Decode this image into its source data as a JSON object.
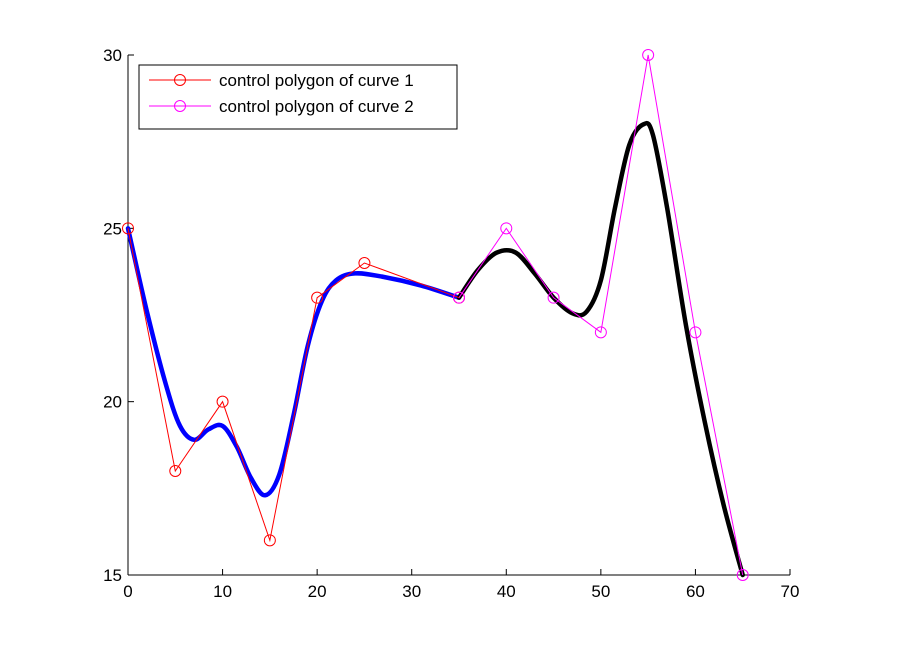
{
  "chart_data": {
    "type": "line",
    "title": "",
    "xlabel": "",
    "ylabel": "",
    "xlim": [
      0,
      70
    ],
    "ylim": [
      15,
      30
    ],
    "xticks": [
      0,
      10,
      20,
      30,
      40,
      50,
      60,
      70
    ],
    "yticks": [
      15,
      20,
      25,
      30
    ],
    "grid": false,
    "legend_position": "top-left",
    "series": [
      {
        "name": "control polygon of curve 1",
        "kind": "control-polygon",
        "color": "#ff0000",
        "marker": "circle",
        "in_legend": true,
        "x": [
          0,
          5,
          10,
          15,
          20,
          25,
          35
        ],
        "y": [
          25,
          18,
          20,
          16,
          23,
          24,
          23
        ]
      },
      {
        "name": "control polygon of curve 2",
        "kind": "control-polygon",
        "color": "#ff00ff",
        "marker": "circle",
        "in_legend": true,
        "x": [
          35,
          40,
          45,
          50,
          55,
          60,
          65
        ],
        "y": [
          23,
          25,
          23,
          22,
          30,
          22,
          15
        ]
      },
      {
        "kind": "curve",
        "color": "#0000ff",
        "in_legend": false,
        "x": [
          0,
          2,
          4,
          5.5,
          7,
          8.5,
          10,
          11.5,
          13,
          14.5,
          16,
          17.5,
          19,
          20.5,
          22,
          24,
          27,
          31,
          35
        ],
        "y": [
          25,
          22.6,
          20.5,
          19.3,
          18.9,
          19.2,
          19.3,
          18.7,
          17.8,
          17.3,
          17.9,
          19.6,
          21.6,
          22.9,
          23.5,
          23.7,
          23.6,
          23.35,
          23.0
        ]
      },
      {
        "kind": "curve",
        "color": "#000000",
        "in_legend": false,
        "x": [
          35,
          37,
          39,
          41,
          43,
          45,
          47,
          48.5,
          50,
          51.5,
          53,
          54.5,
          55.5,
          57,
          59,
          61,
          63,
          65
        ],
        "y": [
          23.0,
          23.8,
          24.3,
          24.3,
          23.7,
          23.0,
          22.55,
          22.6,
          23.5,
          25.6,
          27.4,
          28.0,
          27.7,
          25.6,
          22.2,
          19.4,
          17.0,
          15.0
        ]
      }
    ]
  }
}
